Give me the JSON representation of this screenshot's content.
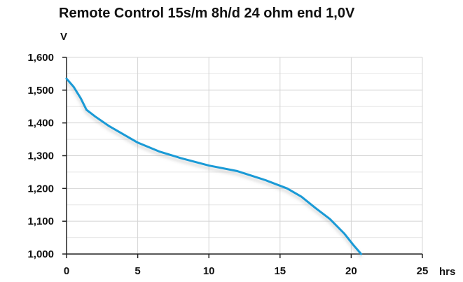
{
  "chart_data": {
    "type": "line",
    "title": "Remote Control 15s/m 8h/d 24 ohm end 1,0V",
    "ylabel": "V",
    "xlabel": "hrs",
    "xlim": [
      0,
      25
    ],
    "ylim": [
      1.0,
      1.6
    ],
    "grid": true,
    "x_ticks": [
      0,
      5,
      10,
      15,
      20,
      25
    ],
    "x_tick_labels": [
      "0",
      "5",
      "10",
      "15",
      "20",
      "25"
    ],
    "y_ticks": [
      1.0,
      1.1,
      1.2,
      1.3,
      1.4,
      1.5,
      1.6
    ],
    "y_tick_labels": [
      "1,000",
      "1,100",
      "1,200",
      "1,300",
      "1,400",
      "1,500",
      "1,600"
    ],
    "series": [
      {
        "color": "#1a9ad6",
        "x": [
          0,
          0.5,
          1.0,
          1.4,
          2.0,
          3.0,
          4.0,
          5.0,
          6.5,
          8.0,
          10.0,
          12.0,
          14.0,
          15.5,
          16.5,
          17.5,
          18.5,
          19.5,
          20.2,
          20.7
        ],
        "y": [
          1.535,
          1.51,
          1.475,
          1.44,
          1.42,
          1.39,
          1.365,
          1.34,
          1.313,
          1.293,
          1.27,
          1.253,
          1.225,
          1.2,
          1.175,
          1.14,
          1.107,
          1.063,
          1.025,
          1.0
        ]
      }
    ]
  }
}
